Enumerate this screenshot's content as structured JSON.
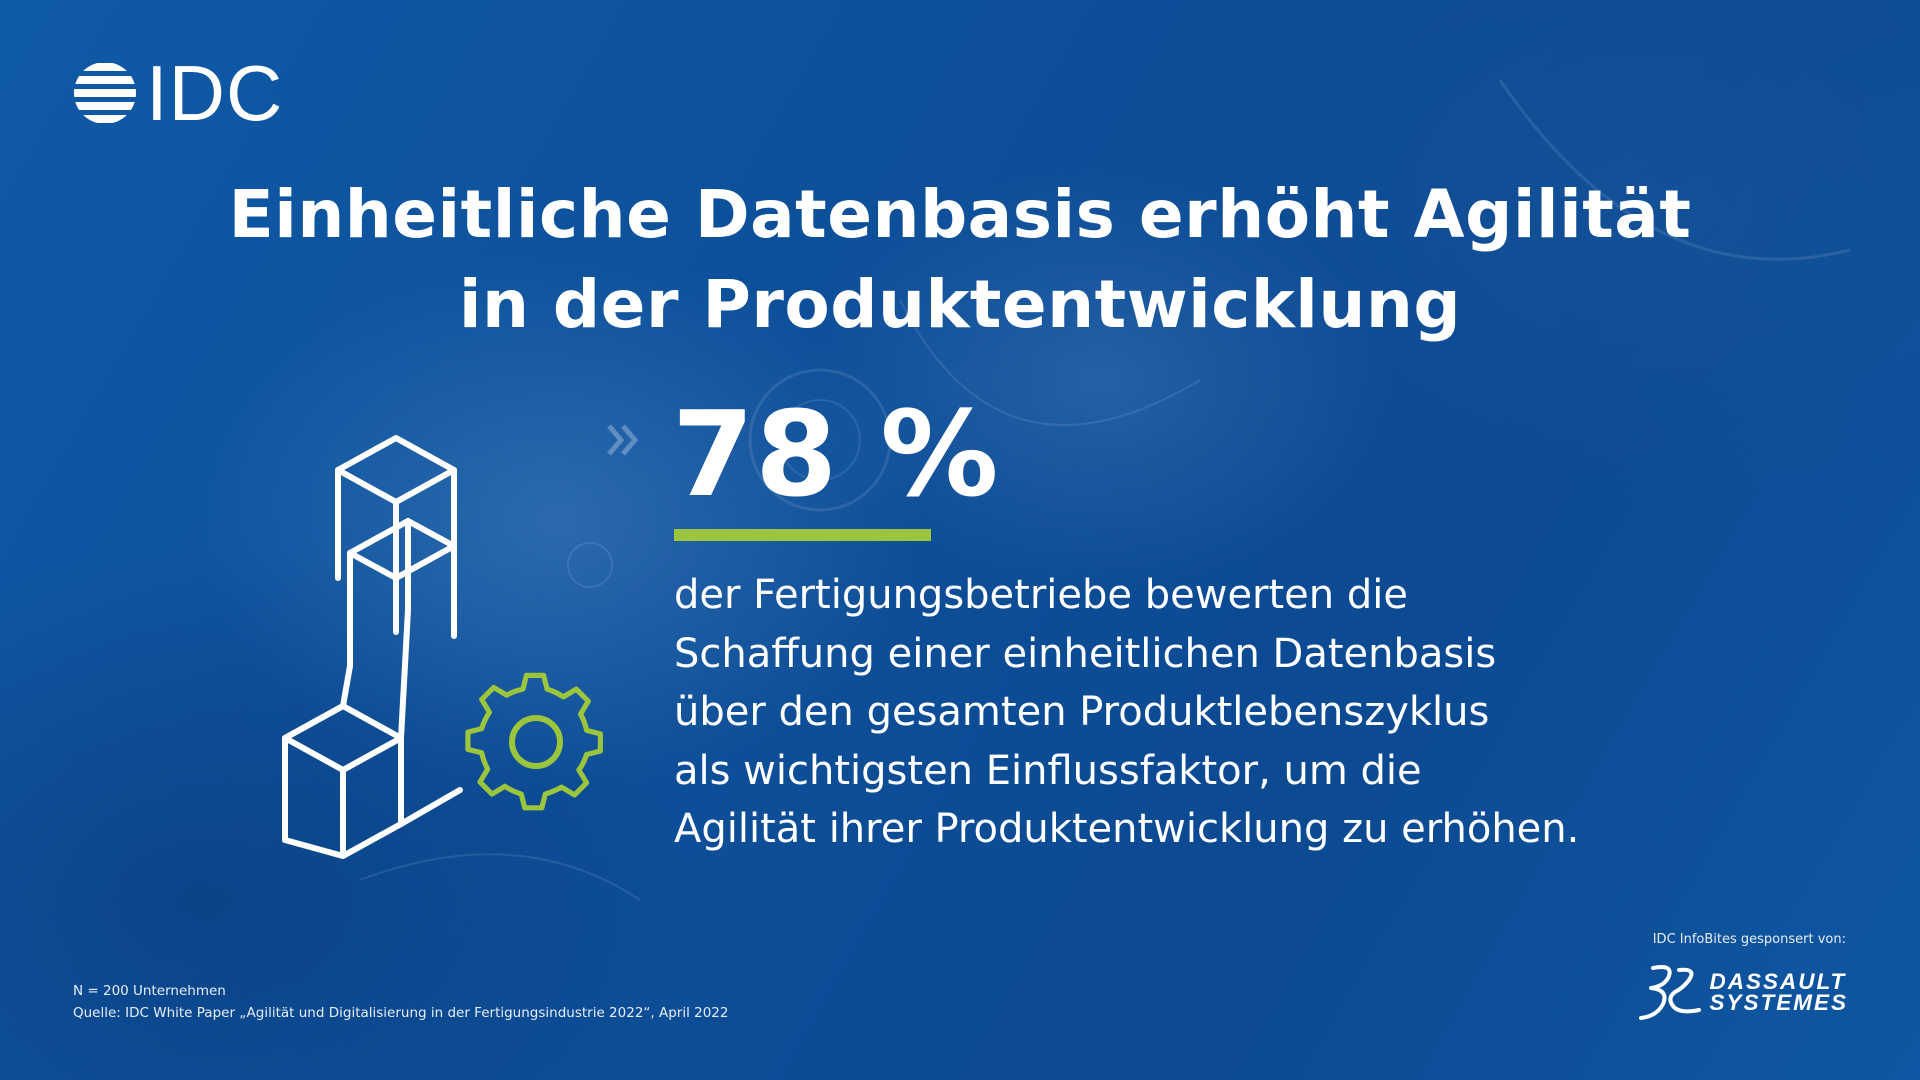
{
  "brand": {
    "logo_text": "IDC",
    "accent_color": "#9bc53d",
    "background_color": "#0e4e98"
  },
  "headline": {
    "line1": "Einheitliche Datenbasis erhöht Agilität",
    "line2": "in der Produktentwicklung"
  },
  "stat": {
    "value": "78 %",
    "description_lines": [
      "der Fertigungsbetriebe bewerten die",
      "Schaffung einer einheitlichen Datenbasis",
      "über den gesamten Produktlebenszyklus",
      "als wichtigsten Einflussfaktor, um die",
      "Agilität ihrer Produktentwicklung zu erhöhen."
    ]
  },
  "illustration": {
    "icon": "stacked-cubes-with-gear-icon"
  },
  "footnote": {
    "sample": "N = 200 Unternehmen",
    "source": "Quelle: IDC White Paper „Agilität und Digitalisierung in der Fertigungsindustrie 2022“, April 2022"
  },
  "sponsor": {
    "label": "IDC InfoBites gesponsert von:",
    "logo_line1": "DASSAULT",
    "logo_line2": "SYSTEMES"
  }
}
